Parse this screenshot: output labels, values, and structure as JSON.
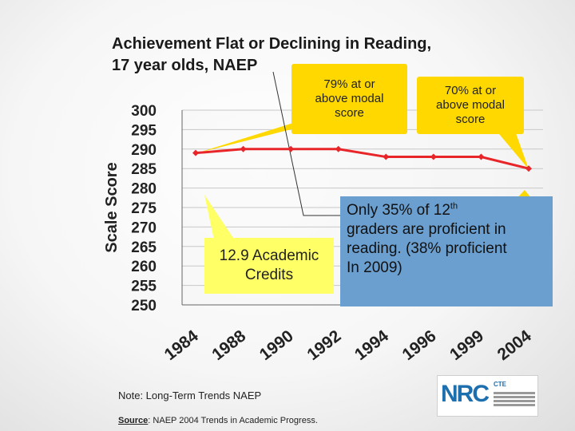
{
  "slide": {
    "title_line1": "Achievement Flat or Declining in Reading,",
    "title_line2": "17 year olds, NAEP",
    "note": "Note: Long-Term Trends NAEP",
    "source_label": "Source",
    "source_text": ": NAEP 2004 Trends in Academic Progress.",
    "logo_text": "NRC",
    "logo_badge": "CTE"
  },
  "callouts": {
    "left_line1": "79% at or",
    "left_line2": "above modal",
    "left_line3": "score",
    "right_line1": "70% at or",
    "right_line2": "above modal",
    "right_line3": "score",
    "credits_line1": "12.9 Academic",
    "credits_line2": "Credits",
    "proficient_line1_pre": "Only 35% of 12",
    "proficient_line1_sup": "th",
    "proficient_line2": "graders are proficient in",
    "proficient_line3": "reading. (38% proficient",
    "proficient_line4": "In 2009)"
  },
  "colors": {
    "series": "#e8262a",
    "callout_yellow": "#ffd800",
    "callout_light_yellow": "#ffff66",
    "callout_blue": "#6a9fd0",
    "axis_text": "#222222"
  },
  "chart_data": {
    "type": "line",
    "ylabel": "Scale Score",
    "xlabel": "",
    "ylim": [
      250,
      300
    ],
    "yticks": [
      300,
      295,
      290,
      285,
      280,
      275,
      270,
      265,
      260,
      255,
      250
    ],
    "categories": [
      "1984",
      "1988",
      "1990",
      "1992",
      "1994",
      "1996",
      "1999",
      "2004"
    ],
    "series": [
      {
        "values": [
          289,
          290,
          290,
          290,
          288,
          288,
          288,
          285
        ]
      }
    ],
    "grid": true
  }
}
